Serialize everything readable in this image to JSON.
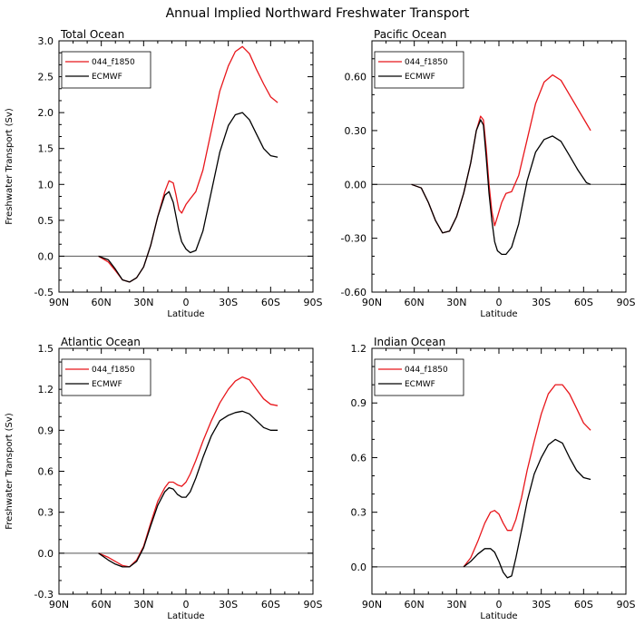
{
  "title": "Annual Implied Northward Freshwater Transport",
  "colors": {
    "model": "#e8161b",
    "obs": "#000000",
    "zero": "#555555",
    "frame": "#000000"
  },
  "chart_data": [
    {
      "type": "line",
      "title": "Total Ocean",
      "xlabel": "Latitude",
      "ylabel": "Freshwater Transport (Sv)",
      "xlim": [
        -90,
        90
      ],
      "x_ticks": [
        -90,
        -60,
        -30,
        0,
        30,
        60,
        90
      ],
      "x_ticklabels": [
        "90N",
        "60N",
        "30N",
        "0",
        "30S",
        "60S",
        "90S"
      ],
      "ylim": [
        -0.5,
        3.0
      ],
      "y_ticks": [
        -0.5,
        0.0,
        0.5,
        1.0,
        1.5,
        2.0,
        2.5,
        3.0
      ],
      "y_ticklabels": [
        "-0.5",
        "0.0",
        "0.5",
        "1.0",
        "1.5",
        "2.0",
        "2.5",
        "3.0"
      ],
      "legend_position": "top-left",
      "series": [
        {
          "name": "044_f1850",
          "color": "#e8161b",
          "x": [
            -62,
            -55,
            -50,
            -45,
            -40,
            -35,
            -30,
            -25,
            -20,
            -15,
            -12,
            -9,
            -7,
            -5,
            -3,
            0,
            3,
            7,
            12,
            18,
            24,
            30,
            35,
            40,
            45,
            50,
            55,
            60,
            65
          ],
          "y": [
            0.0,
            -0.08,
            -0.2,
            -0.33,
            -0.36,
            -0.3,
            -0.15,
            0.15,
            0.55,
            0.9,
            1.05,
            1.02,
            0.85,
            0.65,
            0.6,
            0.72,
            0.8,
            0.9,
            1.2,
            1.75,
            2.3,
            2.65,
            2.85,
            2.92,
            2.82,
            2.6,
            2.4,
            2.22,
            2.14
          ]
        },
        {
          "name": "ECMWF",
          "color": "#000000",
          "x": [
            -62,
            -55,
            -50,
            -45,
            -40,
            -35,
            -30,
            -25,
            -20,
            -15,
            -12,
            -9,
            -7,
            -5,
            -3,
            0,
            3,
            7,
            12,
            18,
            24,
            30,
            35,
            40,
            45,
            50,
            55,
            60,
            65
          ],
          "y": [
            0.0,
            -0.05,
            -0.18,
            -0.33,
            -0.36,
            -0.3,
            -0.15,
            0.15,
            0.55,
            0.85,
            0.9,
            0.75,
            0.55,
            0.35,
            0.2,
            0.1,
            0.05,
            0.08,
            0.35,
            0.9,
            1.45,
            1.82,
            1.97,
            2.0,
            1.9,
            1.7,
            1.5,
            1.4,
            1.38
          ]
        }
      ]
    },
    {
      "type": "line",
      "title": "Pacific Ocean",
      "xlabel": "Latitude",
      "ylabel": "",
      "xlim": [
        -90,
        90
      ],
      "x_ticks": [
        -90,
        -60,
        -30,
        0,
        30,
        60,
        90
      ],
      "x_ticklabels": [
        "90N",
        "60N",
        "30N",
        "0",
        "30S",
        "60S",
        "90S"
      ],
      "ylim": [
        -0.6,
        0.8
      ],
      "y_ticks": [
        -0.6,
        -0.3,
        0.0,
        0.3,
        0.6
      ],
      "y_ticklabels": [
        "-0.60",
        "-0.30",
        "0.00",
        "0.30",
        "0.60"
      ],
      "legend_position": "top-left",
      "series": [
        {
          "name": "044_f1850",
          "color": "#e8161b",
          "x": [
            -62,
            -55,
            -50,
            -45,
            -40,
            -35,
            -30,
            -25,
            -20,
            -16,
            -13,
            -11,
            -9,
            -7,
            -5,
            -3,
            -1,
            2,
            5,
            9,
            14,
            20,
            26,
            32,
            38,
            44,
            50,
            56,
            62,
            65
          ],
          "y": [
            0.0,
            -0.02,
            -0.1,
            -0.2,
            -0.27,
            -0.26,
            -0.18,
            -0.05,
            0.12,
            0.3,
            0.38,
            0.36,
            0.2,
            0.0,
            -0.15,
            -0.23,
            -0.18,
            -0.1,
            -0.05,
            -0.04,
            0.05,
            0.25,
            0.45,
            0.57,
            0.61,
            0.58,
            0.5,
            0.42,
            0.34,
            0.3
          ]
        },
        {
          "name": "ECMWF",
          "color": "#000000",
          "x": [
            -62,
            -55,
            -50,
            -45,
            -40,
            -35,
            -30,
            -25,
            -20,
            -16,
            -13,
            -11,
            -9,
            -7,
            -5,
            -3,
            -1,
            2,
            5,
            9,
            14,
            20,
            26,
            32,
            38,
            44,
            50,
            56,
            62,
            65
          ],
          "y": [
            0.0,
            -0.02,
            -0.1,
            -0.2,
            -0.27,
            -0.26,
            -0.18,
            -0.05,
            0.12,
            0.3,
            0.36,
            0.33,
            0.15,
            -0.05,
            -0.2,
            -0.32,
            -0.37,
            -0.39,
            -0.39,
            -0.35,
            -0.22,
            0.02,
            0.18,
            0.25,
            0.27,
            0.24,
            0.16,
            0.08,
            0.01,
            0.0
          ]
        }
      ]
    },
    {
      "type": "line",
      "title": "Atlantic Ocean",
      "xlabel": "Latitude",
      "ylabel": "Freshwater Transport (Sv)",
      "xlim": [
        -90,
        90
      ],
      "x_ticks": [
        -90,
        -60,
        -30,
        0,
        30,
        60,
        90
      ],
      "x_ticklabels": [
        "90N",
        "60N",
        "30N",
        "0",
        "30S",
        "60S",
        "90S"
      ],
      "ylim": [
        -0.3,
        1.5
      ],
      "y_ticks": [
        -0.3,
        0.0,
        0.3,
        0.6,
        0.9,
        1.2,
        1.5
      ],
      "y_ticklabels": [
        "-0.3",
        "0.0",
        "0.3",
        "0.6",
        "0.9",
        "1.2",
        "1.5"
      ],
      "legend_position": "top-left",
      "series": [
        {
          "name": "044_f1850",
          "color": "#e8161b",
          "x": [
            -62,
            -55,
            -50,
            -45,
            -40,
            -35,
            -30,
            -25,
            -20,
            -15,
            -12,
            -9,
            -6,
            -3,
            0,
            3,
            7,
            12,
            18,
            24,
            30,
            35,
            40,
            45,
            50,
            55,
            60,
            65
          ],
          "y": [
            0.0,
            -0.03,
            -0.06,
            -0.09,
            -0.1,
            -0.05,
            0.05,
            0.22,
            0.38,
            0.48,
            0.52,
            0.52,
            0.5,
            0.49,
            0.52,
            0.58,
            0.68,
            0.82,
            0.97,
            1.1,
            1.2,
            1.26,
            1.29,
            1.27,
            1.2,
            1.13,
            1.09,
            1.08
          ]
        },
        {
          "name": "ECMWF",
          "color": "#000000",
          "x": [
            -62,
            -55,
            -50,
            -45,
            -40,
            -35,
            -30,
            -25,
            -20,
            -15,
            -12,
            -9,
            -6,
            -3,
            0,
            3,
            7,
            12,
            18,
            24,
            30,
            35,
            40,
            45,
            50,
            55,
            60,
            65
          ],
          "y": [
            0.0,
            -0.05,
            -0.08,
            -0.1,
            -0.1,
            -0.06,
            0.04,
            0.2,
            0.35,
            0.45,
            0.48,
            0.47,
            0.43,
            0.41,
            0.41,
            0.45,
            0.55,
            0.7,
            0.86,
            0.97,
            1.01,
            1.03,
            1.04,
            1.02,
            0.97,
            0.92,
            0.9,
            0.9
          ]
        }
      ]
    },
    {
      "type": "line",
      "title": "Indian Ocean",
      "xlabel": "Latitude",
      "ylabel": "",
      "xlim": [
        -90,
        90
      ],
      "x_ticks": [
        -90,
        -60,
        -30,
        0,
        30,
        60,
        90
      ],
      "x_ticklabels": [
        "90N",
        "60N",
        "30N",
        "0",
        "30S",
        "60S",
        "90S"
      ],
      "ylim": [
        -0.15,
        1.2
      ],
      "y_ticks": [
        0.0,
        0.3,
        0.6,
        0.9,
        1.2
      ],
      "y_ticklabels": [
        "0.0",
        "0.3",
        "0.6",
        "0.9",
        "1.2"
      ],
      "legend_position": "top-left",
      "series": [
        {
          "name": "044_f1850",
          "color": "#e8161b",
          "x": [
            -25,
            -20,
            -15,
            -10,
            -6,
            -3,
            0,
            3,
            6,
            9,
            12,
            16,
            20,
            25,
            30,
            35,
            40,
            45,
            50,
            55,
            60,
            65
          ],
          "y": [
            0.0,
            0.05,
            0.14,
            0.24,
            0.3,
            0.31,
            0.29,
            0.24,
            0.2,
            0.2,
            0.26,
            0.38,
            0.53,
            0.69,
            0.84,
            0.95,
            1.0,
            1.0,
            0.95,
            0.87,
            0.79,
            0.75
          ]
        },
        {
          "name": "ECMWF",
          "color": "#000000",
          "x": [
            -25,
            -20,
            -15,
            -10,
            -6,
            -3,
            0,
            3,
            6,
            9,
            12,
            16,
            20,
            25,
            30,
            35,
            40,
            45,
            50,
            55,
            60,
            65
          ],
          "y": [
            0.0,
            0.03,
            0.07,
            0.1,
            0.1,
            0.08,
            0.03,
            -0.03,
            -0.06,
            -0.05,
            0.05,
            0.2,
            0.36,
            0.51,
            0.6,
            0.67,
            0.7,
            0.68,
            0.6,
            0.53,
            0.49,
            0.48
          ]
        }
      ]
    }
  ]
}
